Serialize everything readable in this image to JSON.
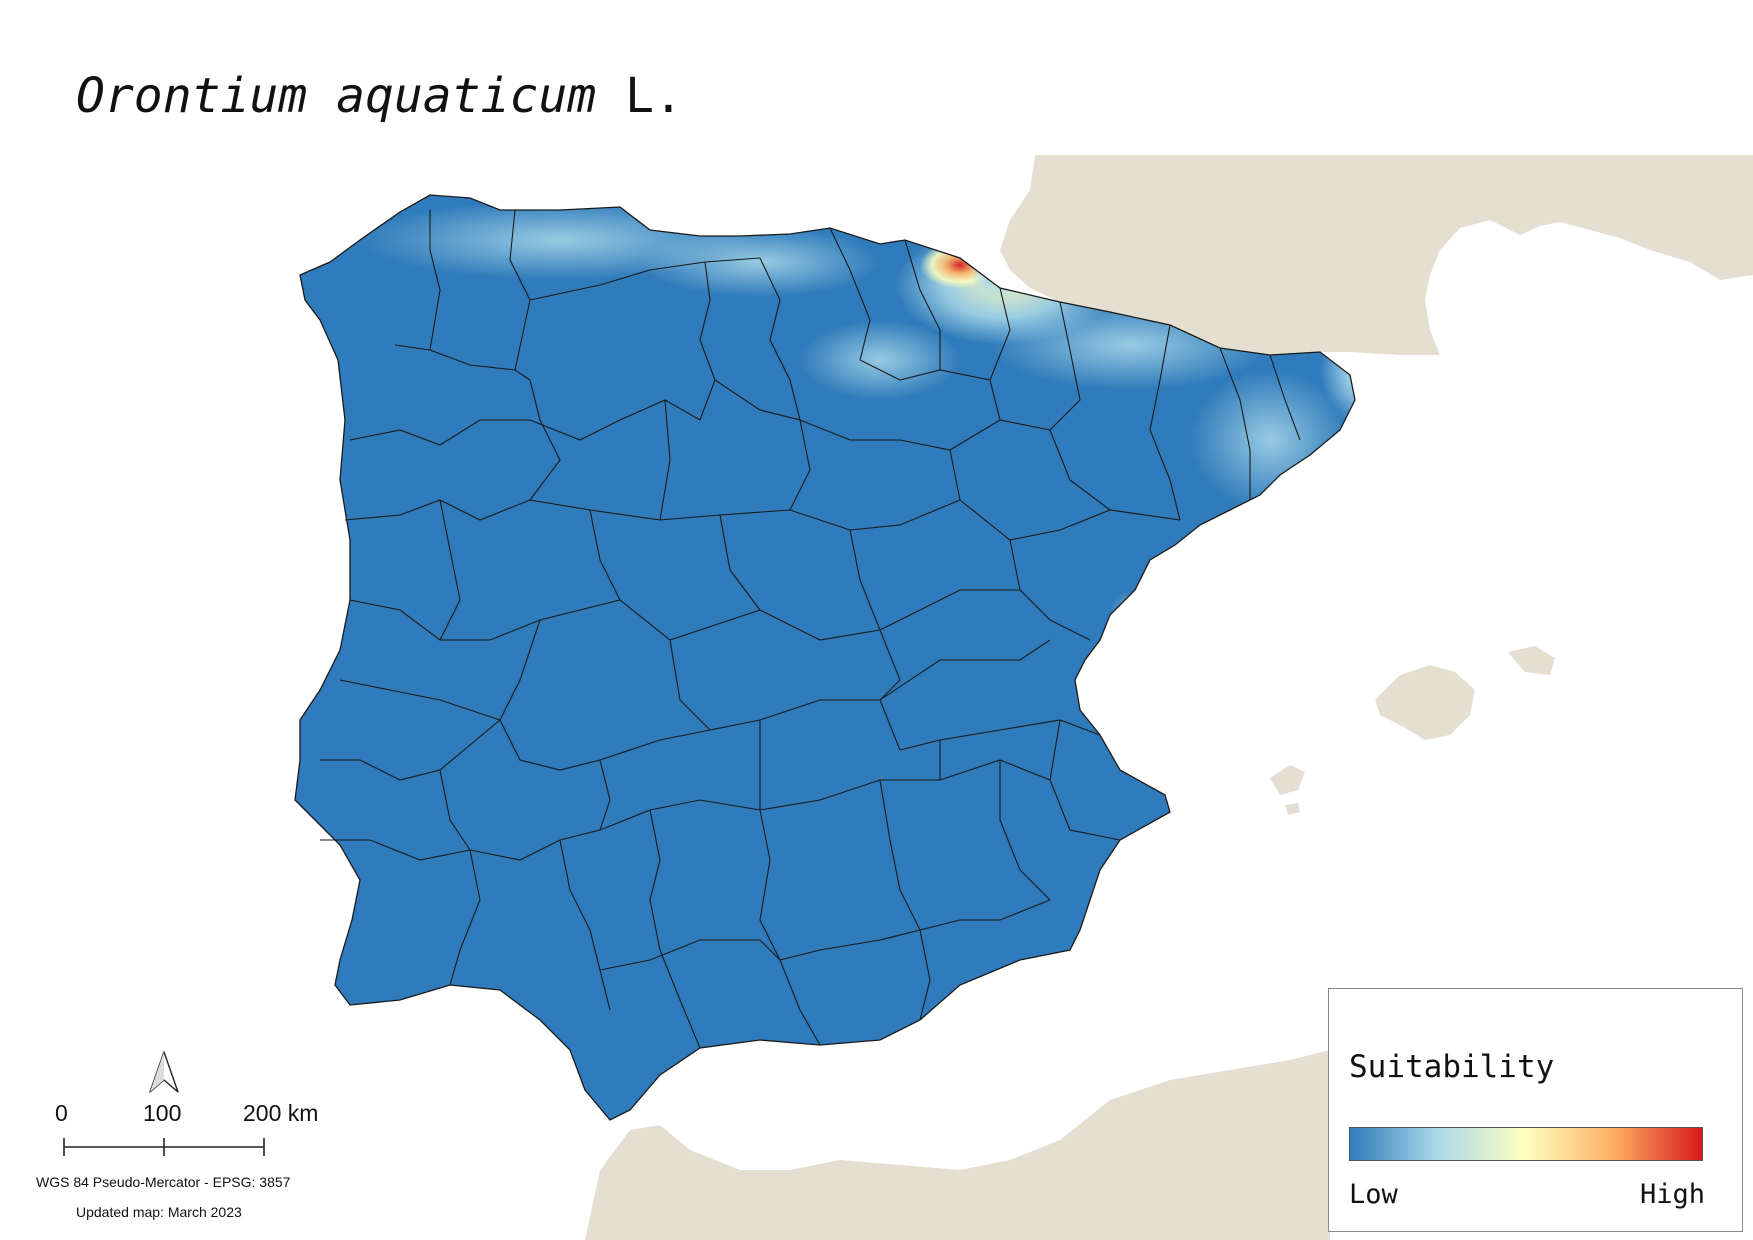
{
  "title": {
    "species": "Orontium aquaticum",
    "author": "L."
  },
  "legend": {
    "title": "Suitability",
    "low_label": "Low",
    "high_label": "High",
    "ramp_colors": [
      "#2f7bbb",
      "#abd9e9",
      "#ffffbf",
      "#fdae61",
      "#d7191c"
    ]
  },
  "map": {
    "region": "Iberian Peninsula",
    "land_color": "#2f7bbb",
    "surrounding_land_color": "#e4dfd0",
    "sea_color": "#ffffff",
    "border_color": "#1a1a1a",
    "high_suitability_area": "north-east coast (Basque Country to Catalonia)"
  },
  "scalebar": {
    "labels": [
      "0",
      "100",
      "200 km"
    ]
  },
  "north_arrow": {
    "icon": "north-arrow-icon"
  },
  "footer": {
    "crs": "WGS 84 Pseudo-Mercator  - EPSG: 3857",
    "updated": "Updated map: March 2023"
  }
}
